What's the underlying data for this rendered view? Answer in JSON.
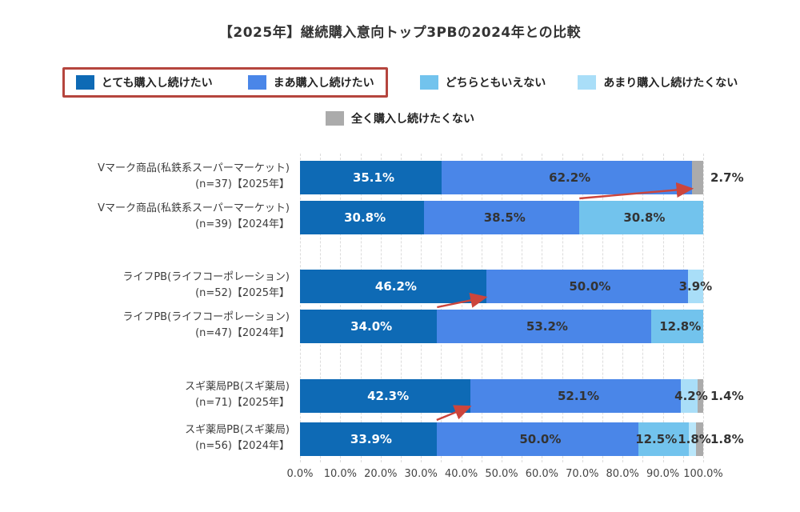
{
  "title": "【2025年】継続購入意向トップ3PBの2024年との比較",
  "legend": {
    "highlight_box_color": "#b5453e",
    "items": [
      {
        "label": "とても購入し続けたい",
        "color": "#0e6ab5",
        "boxed": true,
        "row": 1
      },
      {
        "label": "まあ購入し続けたい",
        "color": "#4a86e8",
        "boxed": true,
        "row": 1
      },
      {
        "label": "どちらともいえない",
        "color": "#72c3ed",
        "boxed": false,
        "row": 1
      },
      {
        "label": "あまり購入し続けたくない",
        "color": "#a9def8",
        "boxed": false,
        "row": 1
      },
      {
        "label": "全く購入し続けたくない",
        "color": "#ababab",
        "boxed": false,
        "row": 2
      }
    ]
  },
  "chart_data": {
    "type": "bar",
    "subtype": "horizontal-stacked",
    "categories": [
      "とても購入し続けたい",
      "まあ購入し続けたい",
      "どちらともいえない",
      "あまり購入し続けたくない",
      "全く購入し続けたくない"
    ],
    "x_axis": {
      "min": 0,
      "max": 100,
      "gridline_step": 5,
      "ticks": [
        "0.0%",
        "10.0%",
        "20.0%",
        "30.0%",
        "40.0%",
        "50.0%",
        "60.0%",
        "70.0%",
        "80.0%",
        "90.0%",
        "100.0%"
      ],
      "tick_values": [
        0,
        10,
        20,
        30,
        40,
        50,
        60,
        70,
        80,
        90,
        100
      ]
    },
    "rows": [
      {
        "label_line1": "Vマーク商品(私鉄系スーパーマーケット)",
        "label_line2": "(n=37)【2025年】",
        "segments": [
          {
            "category": "とても購入し続けたい",
            "value": 35.1,
            "label": "35.1%",
            "color": "#0e6ab5",
            "text_color": "#ffffff",
            "placement": "inside"
          },
          {
            "category": "まあ購入し続けたい",
            "value": 62.2,
            "label": "62.2%",
            "color": "#4a86e8",
            "text_color": "#333333",
            "placement": "inside"
          },
          {
            "category": "全く購入し続けたくない",
            "value": 2.7,
            "label": "2.7%",
            "color": "#ababab",
            "text_color": "#333333",
            "placement": "outside"
          }
        ]
      },
      {
        "label_line1": "Vマーク商品(私鉄系スーパーマーケット)",
        "label_line2": "(n=39)【2024年】",
        "segments": [
          {
            "category": "とても購入し続けたい",
            "value": 30.8,
            "label": "30.8%",
            "color": "#0e6ab5",
            "text_color": "#ffffff",
            "placement": "inside"
          },
          {
            "category": "まあ購入し続けたい",
            "value": 38.5,
            "label": "38.5%",
            "color": "#4a86e8",
            "text_color": "#333333",
            "placement": "inside"
          },
          {
            "category": "どちらともいえない",
            "value": 30.8,
            "label": "30.8%",
            "color": "#72c3ed",
            "text_color": "#333333",
            "placement": "inside"
          }
        ]
      },
      {
        "label_line1": "ライフPB(ライフコーポレーション)",
        "label_line2": "(n=52)【2025年】",
        "segments": [
          {
            "category": "とても購入し続けたい",
            "value": 46.2,
            "label": "46.2%",
            "color": "#0e6ab5",
            "text_color": "#ffffff",
            "placement": "inside"
          },
          {
            "category": "まあ購入し続けたい",
            "value": 50.0,
            "label": "50.0%",
            "color": "#4a86e8",
            "text_color": "#333333",
            "placement": "inside"
          },
          {
            "category": "あまり購入し続けたくない",
            "value": 3.9,
            "label": "3.9%",
            "color": "#a9def8",
            "text_color": "#333333",
            "placement": "inside"
          }
        ]
      },
      {
        "label_line1": "ライフPB(ライフコーポレーション)",
        "label_line2": "(n=47)【2024年】",
        "segments": [
          {
            "category": "とても購入し続けたい",
            "value": 34.0,
            "label": "34.0%",
            "color": "#0e6ab5",
            "text_color": "#ffffff",
            "placement": "inside"
          },
          {
            "category": "まあ購入し続けたい",
            "value": 53.2,
            "label": "53.2%",
            "color": "#4a86e8",
            "text_color": "#333333",
            "placement": "inside"
          },
          {
            "category": "どちらともいえない",
            "value": 12.8,
            "label": "12.8%",
            "color": "#72c3ed",
            "text_color": "#333333",
            "placement": "inside"
          }
        ]
      },
      {
        "label_line1": "スギ薬局PB(スギ薬局)",
        "label_line2": "(n=71)【2025年】",
        "segments": [
          {
            "category": "とても購入し続けたい",
            "value": 42.3,
            "label": "42.3%",
            "color": "#0e6ab5",
            "text_color": "#ffffff",
            "placement": "inside"
          },
          {
            "category": "まあ購入し続けたい",
            "value": 52.1,
            "label": "52.1%",
            "color": "#4a86e8",
            "text_color": "#333333",
            "placement": "inside"
          },
          {
            "category": "あまり購入し続けたくない",
            "value": 4.2,
            "label": "4.2%",
            "color": "#a9def8",
            "text_color": "#333333",
            "placement": "inside"
          },
          {
            "category": "全く購入し続けたくない",
            "value": 1.4,
            "label": "1.4%",
            "color": "#ababab",
            "text_color": "#333333",
            "placement": "outside"
          }
        ]
      },
      {
        "label_line1": "スギ薬局PB(スギ薬局)",
        "label_line2": "(n=56)【2024年】",
        "segments": [
          {
            "category": "とても購入し続けたい",
            "value": 33.9,
            "label": "33.9%",
            "color": "#0e6ab5",
            "text_color": "#ffffff",
            "placement": "inside"
          },
          {
            "category": "まあ購入し続けたい",
            "value": 50.0,
            "label": "50.0%",
            "color": "#4a86e8",
            "text_color": "#333333",
            "placement": "inside"
          },
          {
            "category": "どちらともいえない",
            "value": 12.5,
            "label": "12.5%",
            "color": "#72c3ed",
            "text_color": "#333333",
            "placement": "inside"
          },
          {
            "category": "あまり購入し続けたくない",
            "value": 1.8,
            "label": "1.8%",
            "color": "#b9e6fa",
            "text_color": "#333333",
            "placement": "inside"
          },
          {
            "category": "全く購入し続けたくない",
            "value": 1.8,
            "label": "1.8%",
            "color": "#ababab",
            "text_color": "#333333",
            "placement": "outside"
          }
        ]
      }
    ],
    "arrows": {
      "color": "#cc453c",
      "items": [
        {
          "from_row": 1,
          "from_pct": 69.3,
          "to_row": 0,
          "to_pct": 97.3,
          "meaning": "まあ以上の合計が上昇"
        },
        {
          "from_row": 3,
          "from_pct": 34.0,
          "to_row": 2,
          "to_pct": 46.2,
          "meaning": "とてもが上昇"
        },
        {
          "from_row": 5,
          "from_pct": 33.9,
          "to_row": 4,
          "to_pct": 42.3,
          "meaning": "とてもが上昇"
        }
      ]
    }
  }
}
